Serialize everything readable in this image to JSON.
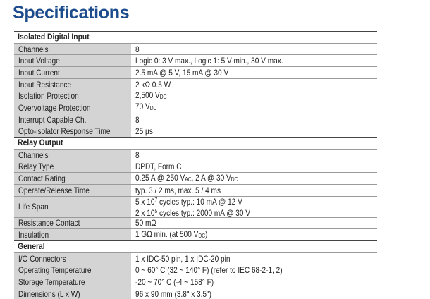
{
  "title": "Specifications",
  "sections": [
    {
      "title": "Isolated Digital Input",
      "rows": [
        {
          "label": "Channels",
          "lines": [
            [
              "8"
            ]
          ]
        },
        {
          "label": "Input Voltage",
          "lines": [
            [
              "Logic 0: 3 V max., Logic 1: 5 V min., 30 V max."
            ]
          ]
        },
        {
          "label": "Input Current",
          "lines": [
            [
              "2.5 mA @ 5 V, 15 mA @ 30 V"
            ]
          ]
        },
        {
          "label": "Input Resistance",
          "lines": [
            [
              "2 kΩ 0.5 W"
            ]
          ]
        },
        {
          "label": "Isolation Protection",
          "lines": [
            [
              "2,500 V",
              {
                "sub": "DC"
              }
            ]
          ]
        },
        {
          "label": "Overvoltage Protection",
          "lines": [
            [
              "70 V",
              {
                "sub": "DC"
              }
            ]
          ]
        },
        {
          "label": "Interrupt Capable Ch.",
          "lines": [
            [
              "8"
            ]
          ]
        },
        {
          "label": "Opto-isolator Response Time",
          "lines": [
            [
              "25 µs"
            ]
          ]
        }
      ]
    },
    {
      "title": "Relay Output",
      "rows": [
        {
          "label": "Channels",
          "lines": [
            [
              "8"
            ]
          ]
        },
        {
          "label": "Relay Type",
          "lines": [
            [
              "DPDT, Form C"
            ]
          ]
        },
        {
          "label": "Contact Rating",
          "lines": [
            [
              "0.25 A @ 250 V",
              {
                "sub": "AC"
              },
              ", 2 A @ 30 V",
              {
                "sub": "DC"
              }
            ]
          ]
        },
        {
          "label": "Operate/Release Time",
          "lines": [
            [
              "typ. 3 / 2 ms, max. 5 / 4 ms"
            ]
          ]
        },
        {
          "label": "Life Span",
          "lines": [
            [
              "5 x 10",
              {
                "sup": "7"
              },
              " cycles typ.: 10 mA @ 12 V"
            ],
            [
              "2 x 10",
              {
                "sup": "5"
              },
              " cycles typ.: 2000 mA @ 30 V"
            ]
          ]
        },
        {
          "label": "Resistance Contact",
          "lines": [
            [
              "50 mΩ"
            ]
          ]
        },
        {
          "label": "Insulation",
          "lines": [
            [
              "1 GΩ min. (at 500 V",
              {
                "sub": "DC"
              },
              ")"
            ]
          ]
        }
      ]
    },
    {
      "title": "General",
      "rows": [
        {
          "label": "I/O Connectors",
          "lines": [
            [
              "1 x IDC-50 pin, 1 x IDC-20 pin"
            ]
          ]
        },
        {
          "label": "Operating Temperature",
          "lines": [
            [
              "0 ~ 60° C (32 ~ 140° F) (refer to IEC 68-2-1, 2)"
            ]
          ]
        },
        {
          "label": "Storage Temperature",
          "lines": [
            [
              "-20 ~ 70° C (-4 ~ 158° F)"
            ]
          ]
        },
        {
          "label": "Dimensions (L x W)",
          "lines": [
            [
              "96 x 90 mm (3.8\" x 3.5\")"
            ]
          ]
        }
      ]
    }
  ]
}
